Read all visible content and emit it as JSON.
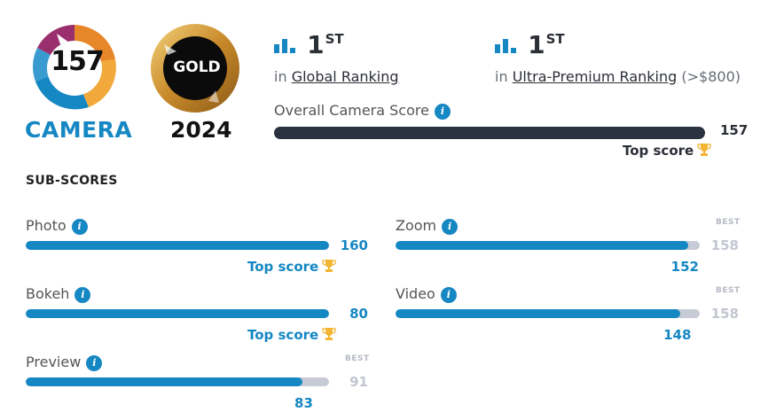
{
  "badges": {
    "camera_score": "157",
    "camera_label": "CAMERA",
    "gold_label": "GOLD",
    "year": "2024"
  },
  "rankings": [
    {
      "rank": "1",
      "suffix": "ST",
      "prefix": "in",
      "link_text": "Global Ranking",
      "extra": ""
    },
    {
      "rank": "1",
      "suffix": "ST",
      "prefix": "in",
      "link_text": "Ultra-Premium Ranking",
      "extra": "(>$800)"
    }
  ],
  "overall": {
    "label": "Overall Camera Score",
    "score": "157",
    "top_score_label": "Top score",
    "fill": 1.0
  },
  "subscores": {
    "title": "SUB-SCORES",
    "items": [
      {
        "label": "Photo",
        "value": "160",
        "fill": 1.0,
        "best_tag": "",
        "best_value": "",
        "top_score": "Top score"
      },
      {
        "label": "Zoom",
        "value": "152",
        "fill": 0.962,
        "best_tag": "BEST",
        "best_value": "158",
        "top_score": ""
      },
      {
        "label": "Bokeh",
        "value": "80",
        "fill": 1.0,
        "best_tag": "",
        "best_value": "",
        "top_score": "Top score"
      },
      {
        "label": "Video",
        "value": "148",
        "fill": 0.937,
        "best_tag": "BEST",
        "best_value": "158",
        "top_score": ""
      },
      {
        "label": "Preview",
        "value": "83",
        "fill": 0.912,
        "best_tag": "BEST",
        "best_value": "91",
        "top_score": ""
      }
    ]
  },
  "colors": {
    "accent": "#1587c3",
    "dark_bar": "#2b3340",
    "track": "#c7cbd6",
    "gold": "#e8b54a"
  }
}
